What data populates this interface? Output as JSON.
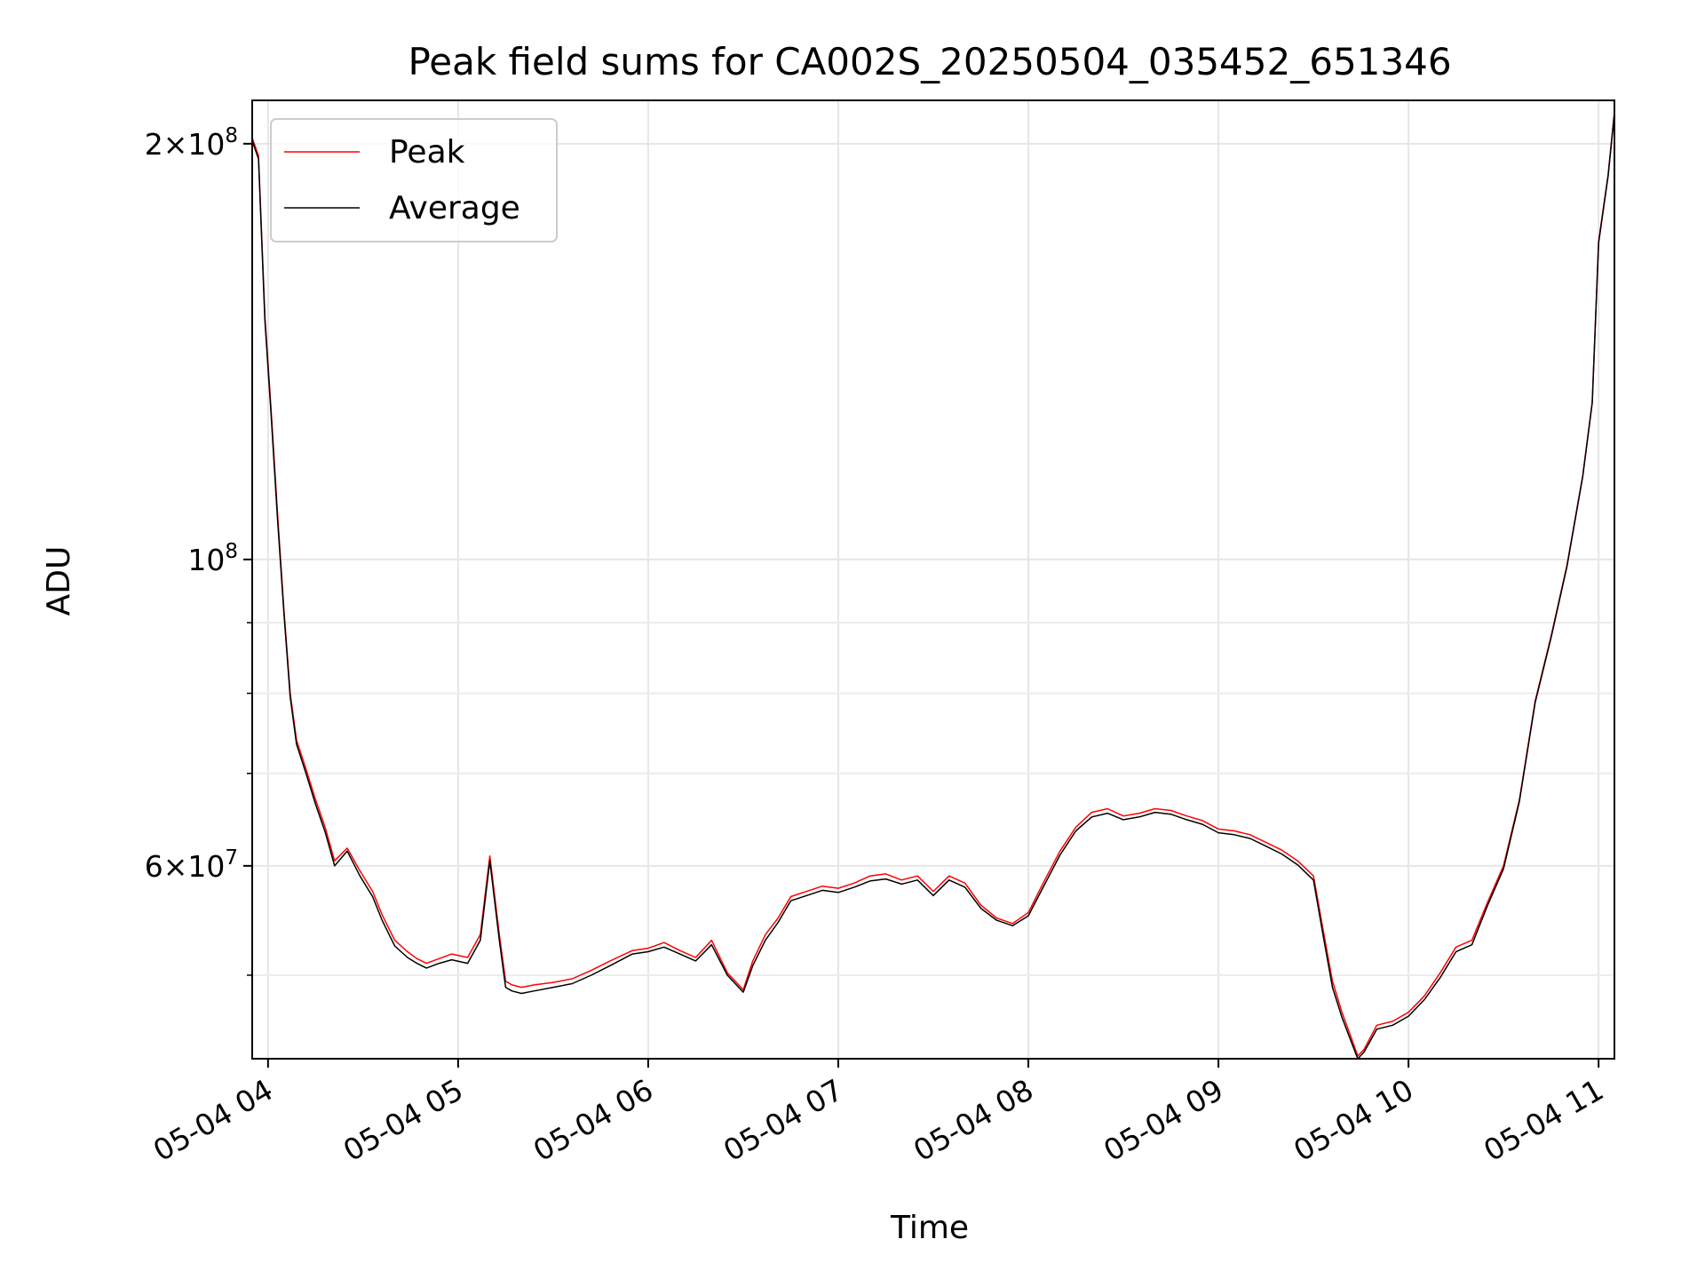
{
  "chart_data": {
    "type": "line",
    "title": "Peak field sums for CA002S_20250504_035452_651346",
    "xlabel": "Time",
    "ylabel": "ADU",
    "yscale": "log",
    "grid": true,
    "legend_position": "top-left",
    "xlim": [
      "2025-05-04T03:55",
      "2025-05-04T11:05"
    ],
    "ylim": [
      43500000,
      215000000
    ],
    "x_ticks": [
      {
        "value": "2025-05-04T04:00",
        "label": "05-04 04"
      },
      {
        "value": "2025-05-04T05:00",
        "label": "05-04 05"
      },
      {
        "value": "2025-05-04T06:00",
        "label": "05-04 06"
      },
      {
        "value": "2025-05-04T07:00",
        "label": "05-04 07"
      },
      {
        "value": "2025-05-04T08:00",
        "label": "05-04 08"
      },
      {
        "value": "2025-05-04T09:00",
        "label": "05-04 09"
      },
      {
        "value": "2025-05-04T10:00",
        "label": "05-04 10"
      },
      {
        "value": "2025-05-04T11:00",
        "label": "05-04 11"
      }
    ],
    "y_major_ticks": [
      {
        "value": 60000000,
        "mantissa": "6",
        "exponent": "7"
      },
      {
        "value": 100000000,
        "mantissa": "",
        "exponent": "8"
      },
      {
        "value": 200000000,
        "mantissa": "2",
        "exponent": "8"
      }
    ],
    "y_minor_ticks": [
      50000000,
      70000000,
      80000000,
      90000000
    ],
    "series": [
      {
        "name": "Peak",
        "color": "#ff0000",
        "x": [
          "2025-05-04T03:55",
          "2025-05-04T03:57",
          "2025-05-04T03:59",
          "2025-05-04T04:01",
          "2025-05-04T04:03",
          "2025-05-04T04:05",
          "2025-05-04T04:07",
          "2025-05-04T04:09",
          "2025-05-04T04:12",
          "2025-05-04T04:15",
          "2025-05-04T04:18",
          "2025-05-04T04:21",
          "2025-05-04T04:25",
          "2025-05-04T04:29",
          "2025-05-04T04:33",
          "2025-05-04T04:36",
          "2025-05-04T04:40",
          "2025-05-04T04:44",
          "2025-05-04T04:47",
          "2025-05-04T04:50",
          "2025-05-04T04:54",
          "2025-05-04T04:58",
          "2025-05-04T05:03",
          "2025-05-04T05:07",
          "2025-05-04T05:10",
          "2025-05-04T05:13",
          "2025-05-04T05:15",
          "2025-05-04T05:17",
          "2025-05-04T05:20",
          "2025-05-04T05:24",
          "2025-05-04T05:30",
          "2025-05-04T05:36",
          "2025-05-04T05:42",
          "2025-05-04T05:48",
          "2025-05-04T05:55",
          "2025-05-04T06:00",
          "2025-05-04T06:05",
          "2025-05-04T06:10",
          "2025-05-04T06:15",
          "2025-05-04T06:20",
          "2025-05-04T06:25",
          "2025-05-04T06:30",
          "2025-05-04T06:33",
          "2025-05-04T06:37",
          "2025-05-04T06:41",
          "2025-05-04T06:45",
          "2025-05-04T06:50",
          "2025-05-04T06:55",
          "2025-05-04T07:00",
          "2025-05-04T07:05",
          "2025-05-04T07:10",
          "2025-05-04T07:15",
          "2025-05-04T07:20",
          "2025-05-04T07:25",
          "2025-05-04T07:30",
          "2025-05-04T07:35",
          "2025-05-04T07:40",
          "2025-05-04T07:45",
          "2025-05-04T07:50",
          "2025-05-04T07:55",
          "2025-05-04T08:00",
          "2025-05-04T08:05",
          "2025-05-04T08:10",
          "2025-05-04T08:15",
          "2025-05-04T08:20",
          "2025-05-04T08:25",
          "2025-05-04T08:30",
          "2025-05-04T08:35",
          "2025-05-04T08:40",
          "2025-05-04T08:45",
          "2025-05-04T08:50",
          "2025-05-04T08:55",
          "2025-05-04T09:00",
          "2025-05-04T09:05",
          "2025-05-04T09:10",
          "2025-05-04T09:15",
          "2025-05-04T09:20",
          "2025-05-04T09:25",
          "2025-05-04T09:30",
          "2025-05-04T09:33",
          "2025-05-04T09:36",
          "2025-05-04T09:39",
          "2025-05-04T09:42",
          "2025-05-04T09:44",
          "2025-05-04T09:46",
          "2025-05-04T09:50",
          "2025-05-04T09:55",
          "2025-05-04T10:00",
          "2025-05-04T10:05",
          "2025-05-04T10:10",
          "2025-05-04T10:15",
          "2025-05-04T10:20",
          "2025-05-04T10:25",
          "2025-05-04T10:30",
          "2025-05-04T10:35",
          "2025-05-04T10:40",
          "2025-05-04T10:45",
          "2025-05-04T10:50",
          "2025-05-04T10:55",
          "2025-05-04T10:58",
          "2025-05-04T11:00",
          "2025-05-04T11:03",
          "2025-05-04T11:05"
        ],
        "values": [
          202000000,
          196000000,
          150000000,
          128000000,
          108000000,
          92000000,
          80000000,
          74000000,
          70500000,
          67000000,
          64000000,
          60500000,
          61800000,
          59500000,
          57500000,
          55300000,
          53000000,
          52000000,
          51400000,
          51000000,
          51400000,
          51800000,
          51500000,
          53500000,
          61000000,
          53500000,
          49500000,
          49200000,
          49000000,
          49200000,
          49400000,
          49700000,
          50400000,
          51200000,
          52100000,
          52300000,
          52800000,
          52100000,
          51500000,
          53000000,
          50200000,
          48800000,
          51200000,
          53500000,
          55000000,
          57000000,
          57500000,
          58000000,
          57800000,
          58300000,
          59000000,
          59200000,
          58600000,
          59000000,
          57500000,
          59000000,
          58300000,
          56200000,
          55000000,
          54500000,
          55500000,
          58500000,
          61500000,
          64000000,
          65600000,
          66000000,
          65200000,
          65500000,
          66000000,
          65800000,
          65200000,
          64700000,
          63800000,
          63600000,
          63200000,
          62400000,
          61600000,
          60500000,
          59000000,
          54000000,
          49500000,
          47000000,
          45000000,
          43700000,
          44200000,
          46000000,
          46300000,
          47000000,
          48300000,
          50200000,
          52400000,
          53000000,
          56500000,
          60000000,
          67000000,
          79000000,
          88000000,
          99000000,
          115000000,
          130000000,
          170000000,
          190000000,
          211000000
        ]
      },
      {
        "name": "Average",
        "color": "#000000",
        "x": [
          "2025-05-04T03:55",
          "2025-05-04T03:57",
          "2025-05-04T03:59",
          "2025-05-04T04:01",
          "2025-05-04T04:03",
          "2025-05-04T04:05",
          "2025-05-04T04:07",
          "2025-05-04T04:09",
          "2025-05-04T04:12",
          "2025-05-04T04:15",
          "2025-05-04T04:18",
          "2025-05-04T04:21",
          "2025-05-04T04:25",
          "2025-05-04T04:29",
          "2025-05-04T04:33",
          "2025-05-04T04:36",
          "2025-05-04T04:40",
          "2025-05-04T04:44",
          "2025-05-04T04:47",
          "2025-05-04T04:50",
          "2025-05-04T04:54",
          "2025-05-04T04:58",
          "2025-05-04T05:03",
          "2025-05-04T05:07",
          "2025-05-04T05:10",
          "2025-05-04T05:13",
          "2025-05-04T05:15",
          "2025-05-04T05:17",
          "2025-05-04T05:20",
          "2025-05-04T05:24",
          "2025-05-04T05:30",
          "2025-05-04T05:36",
          "2025-05-04T05:42",
          "2025-05-04T05:48",
          "2025-05-04T05:55",
          "2025-05-04T06:00",
          "2025-05-04T06:05",
          "2025-05-04T06:10",
          "2025-05-04T06:15",
          "2025-05-04T06:20",
          "2025-05-04T06:25",
          "2025-05-04T06:30",
          "2025-05-04T06:33",
          "2025-05-04T06:37",
          "2025-05-04T06:41",
          "2025-05-04T06:45",
          "2025-05-04T06:50",
          "2025-05-04T06:55",
          "2025-05-04T07:00",
          "2025-05-04T07:05",
          "2025-05-04T07:10",
          "2025-05-04T07:15",
          "2025-05-04T07:20",
          "2025-05-04T07:25",
          "2025-05-04T07:30",
          "2025-05-04T07:35",
          "2025-05-04T07:40",
          "2025-05-04T07:45",
          "2025-05-04T07:50",
          "2025-05-04T07:55",
          "2025-05-04T08:00",
          "2025-05-04T08:05",
          "2025-05-04T08:10",
          "2025-05-04T08:15",
          "2025-05-04T08:20",
          "2025-05-04T08:25",
          "2025-05-04T08:30",
          "2025-05-04T08:35",
          "2025-05-04T08:40",
          "2025-05-04T08:45",
          "2025-05-04T08:50",
          "2025-05-04T08:55",
          "2025-05-04T09:00",
          "2025-05-04T09:05",
          "2025-05-04T09:10",
          "2025-05-04T09:15",
          "2025-05-04T09:20",
          "2025-05-04T09:25",
          "2025-05-04T09:30",
          "2025-05-04T09:33",
          "2025-05-04T09:36",
          "2025-05-04T09:39",
          "2025-05-04T09:42",
          "2025-05-04T09:44",
          "2025-05-04T09:46",
          "2025-05-04T09:50",
          "2025-05-04T09:55",
          "2025-05-04T10:00",
          "2025-05-04T10:05",
          "2025-05-04T10:10",
          "2025-05-04T10:15",
          "2025-05-04T10:20",
          "2025-05-04T10:25",
          "2025-05-04T10:30",
          "2025-05-04T10:35",
          "2025-05-04T10:40",
          "2025-05-04T10:45",
          "2025-05-04T10:50",
          "2025-05-04T10:55",
          "2025-05-04T10:58",
          "2025-05-04T11:00",
          "2025-05-04T11:03",
          "2025-05-04T11:05"
        ],
        "values": [
          201000000,
          195000000,
          149000000,
          127000000,
          107000000,
          91500000,
          79500000,
          73500000,
          70000000,
          66500000,
          63500000,
          60000000,
          61500000,
          59000000,
          57000000,
          54800000,
          52500000,
          51500000,
          51000000,
          50600000,
          51000000,
          51300000,
          51000000,
          53000000,
          60500000,
          53000000,
          49000000,
          48700000,
          48500000,
          48700000,
          49000000,
          49300000,
          50000000,
          50800000,
          51800000,
          52000000,
          52400000,
          51800000,
          51200000,
          52600000,
          50000000,
          48600000,
          50800000,
          53000000,
          54600000,
          56600000,
          57100000,
          57600000,
          57400000,
          57900000,
          58500000,
          58700000,
          58200000,
          58600000,
          57100000,
          58600000,
          57900000,
          55900000,
          54800000,
          54300000,
          55200000,
          58100000,
          61100000,
          63600000,
          65100000,
          65500000,
          64800000,
          65100000,
          65600000,
          65400000,
          64800000,
          64300000,
          63400000,
          63200000,
          62800000,
          62000000,
          61200000,
          60100000,
          58600000,
          53500000,
          49000000,
          46600000,
          44700000,
          43500000,
          44000000,
          45700000,
          46000000,
          46700000,
          48000000,
          49800000,
          52000000,
          52600000,
          56200000,
          59700000,
          66800000,
          78800000,
          87800000,
          98800000,
          114800000,
          129800000,
          169500000,
          189500000,
          210500000
        ]
      }
    ]
  }
}
